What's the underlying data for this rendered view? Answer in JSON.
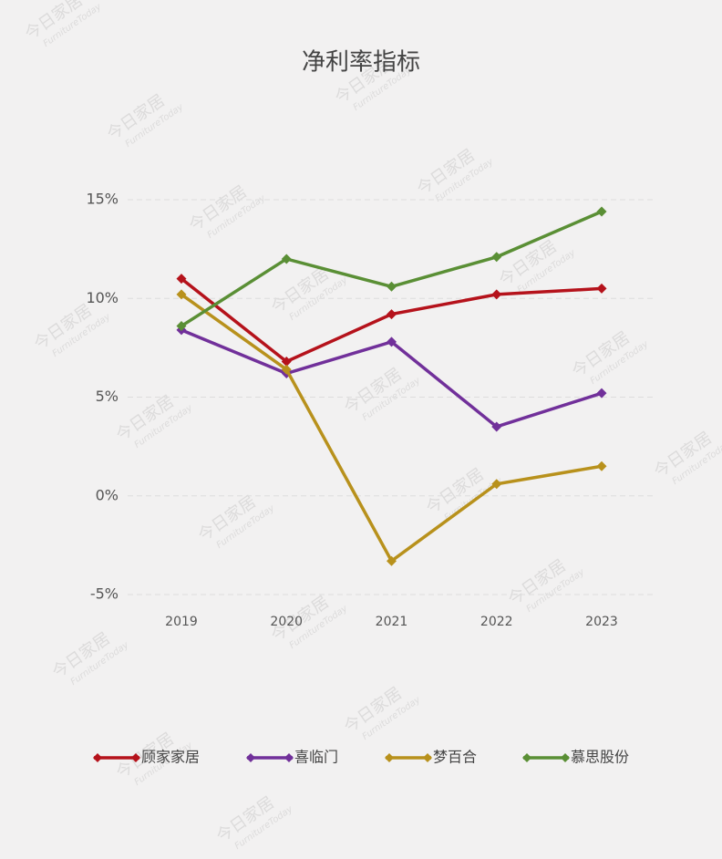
{
  "chart_data": {
    "type": "line",
    "title": "净利率指标",
    "categories": [
      "2019",
      "2020",
      "2021",
      "2022",
      "2023"
    ],
    "series": [
      {
        "name": "顾家家居",
        "color": "#b5121b",
        "values": [
          11.0,
          6.8,
          9.2,
          10.2,
          10.5
        ]
      },
      {
        "name": "喜临门",
        "color": "#71309a",
        "values": [
          8.4,
          6.2,
          7.8,
          3.5,
          5.2
        ]
      },
      {
        "name": "梦百合",
        "color": "#b8911c",
        "values": [
          10.2,
          6.4,
          -3.3,
          0.6,
          1.5
        ]
      },
      {
        "name": "慕思股份",
        "color": "#5a8f35",
        "values": [
          8.6,
          12.0,
          10.6,
          12.1,
          14.4
        ]
      }
    ],
    "ylim": [
      -5,
      15
    ],
    "yticks": [
      {
        "value": -5,
        "label": "-5%"
      },
      {
        "value": 0,
        "label": "0%"
      },
      {
        "value": 5,
        "label": "5%"
      },
      {
        "value": 10,
        "label": "10%"
      },
      {
        "value": 15,
        "label": "15%"
      }
    ],
    "grid": true,
    "legend": "bottom",
    "watermark": [
      "今日家居",
      "FurnitureToday"
    ]
  }
}
